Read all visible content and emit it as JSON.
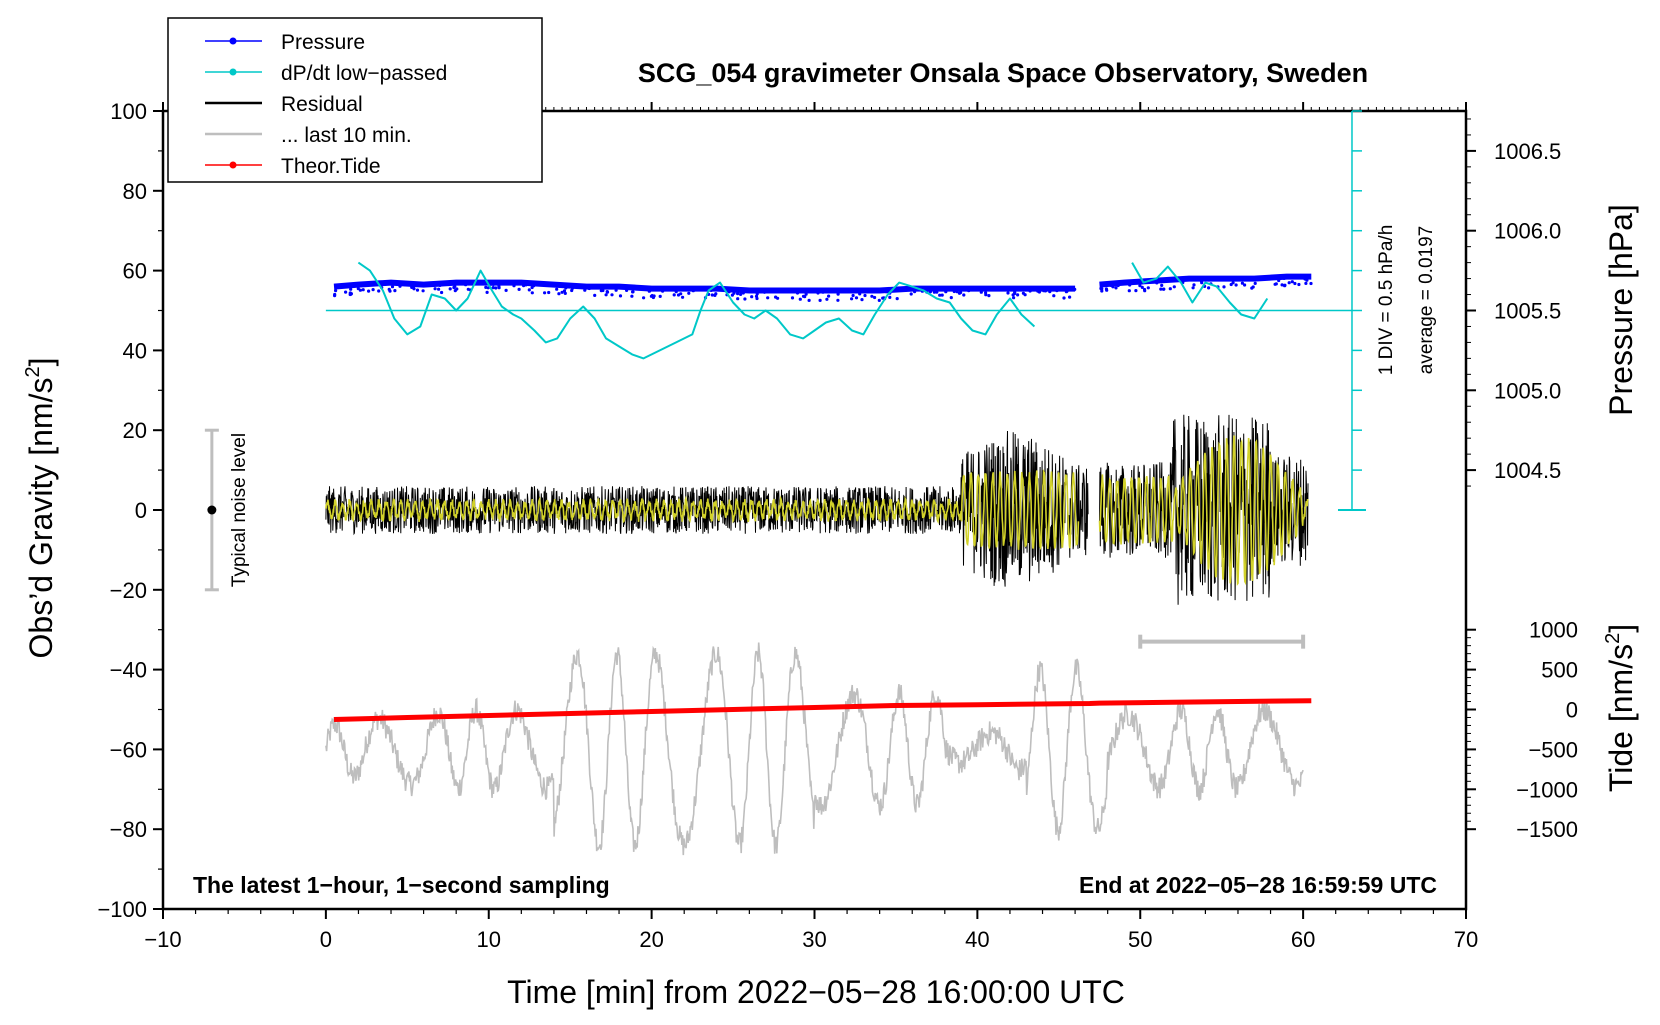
{
  "chart_data": {
    "type": "line",
    "title": "SCG_054 gravimeter Onsala Space Observatory, Sweden",
    "xlabel": "Time [min] from 2022−05−28 16:00:00 UTC",
    "ylabel": "Obs’d Gravity [nm/s",
    "ylabel_sup": "2",
    "ylabel_end": "]",
    "y2label_pressure": "Pressure [hPa]",
    "y2label_tide": "Tide [nm/s",
    "y2label_tide_sup": "2",
    "y2label_tide_end": "]",
    "xlim": [
      -10,
      70
    ],
    "ylim": [
      -100,
      100
    ],
    "x_ticks": [
      "−10",
      "0",
      "10",
      "20",
      "30",
      "40",
      "50",
      "60",
      "70"
    ],
    "x_tick_values": [
      -10,
      0,
      10,
      20,
      30,
      40,
      50,
      60,
      70
    ],
    "y_ticks": [
      "100",
      "80",
      "60",
      "40",
      "20",
      "0",
      "−20",
      "−40",
      "−60",
      "−80",
      "−100"
    ],
    "y_tick_values": [
      100,
      80,
      60,
      40,
      20,
      0,
      -20,
      -40,
      -60,
      -80,
      -100
    ],
    "pressure_axis": {
      "ticks": [
        "1006.5",
        "1006.0",
        "1005.5",
        "1005.0",
        "1004.5"
      ],
      "values": [
        1006.5,
        1006.0,
        1005.5,
        1005.0,
        1004.5
      ],
      "gravity_equiv_per_hpa": 40,
      "ref_hpa": 1005.5,
      "ref_gravity": 50
    },
    "tide_axis": {
      "ticks": [
        "1000",
        "500",
        "0",
        "−500",
        "−1000",
        "−1500"
      ],
      "values": [
        1000,
        500,
        0,
        -500,
        -1000,
        -1500
      ],
      "gravity_per_nms2": 0.02,
      "zero_gravity": -50
    },
    "legend": [
      {
        "label": "Pressure",
        "color": "#0000ff",
        "style": "line-dot"
      },
      {
        "label": "dP/dt low−passed",
        "color": "#00c8c8",
        "style": "line-dot"
      },
      {
        "label": "Residual",
        "color": "#000000",
        "style": "line"
      },
      {
        "label": "... last 10 min.",
        "color": "#bebebe",
        "style": "line"
      },
      {
        "label": "Theor.Tide",
        "color": "#ff0000",
        "style": "line-dot"
      }
    ],
    "annotations": {
      "left_note": "The latest 1−hour, 1−second sampling",
      "right_note": "End at 2022−05−28 16:59:59 UTC",
      "noise_label": "Typical noise level",
      "noise_range": [
        -20,
        20
      ],
      "noise_x": -7,
      "div_label": "1 DIV = 0.5 hPa/h",
      "average_label": "average = 0.0197",
      "dpdt_scale_x": 63,
      "dpdt_scale_range": [
        0,
        100
      ],
      "dpdt_baseline": 50,
      "ten_min_bar": [
        50,
        60
      ],
      "ten_min_bar_y": -33
    },
    "series": [
      {
        "name": "Pressure",
        "color": "#0000ff",
        "x": [
          0.5,
          2,
          4,
          6,
          8,
          10,
          12,
          14,
          16,
          18,
          20,
          22,
          24,
          26,
          28,
          30,
          32,
          34,
          36,
          38,
          40,
          42,
          44,
          46
        ],
        "y": [
          56,
          56.5,
          57,
          56.5,
          57,
          57,
          57,
          56.5,
          56,
          56,
          55.5,
          55.5,
          55.5,
          55,
          55,
          55,
          55,
          55,
          55.5,
          55.5,
          55.5,
          55.5,
          55.5,
          55.5
        ]
      },
      {
        "name": "Pressure (after gap)",
        "color": "#0000ff",
        "x": [
          47.5,
          49,
          51,
          53,
          55,
          57,
          59,
          60.5
        ],
        "y": [
          56.5,
          57,
          57.5,
          58,
          58,
          58,
          58.5,
          58.5
        ]
      },
      {
        "name": "dP/dt low-passed",
        "color": "#00c8c8",
        "x": [
          2,
          2.7,
          3.5,
          4.2,
          5,
          5.8,
          6.5,
          7.3,
          8,
          8.7,
          9.5,
          10.2,
          10.8,
          11.5,
          12,
          12.8,
          13.5,
          14.2,
          15,
          15.8,
          16.5,
          17.2,
          18,
          18.8,
          19.5,
          20.5,
          21.5,
          22.5,
          23,
          23.5,
          24.2,
          25,
          25.7,
          26.3,
          27,
          27.7,
          28.5,
          29.3,
          30,
          30.7,
          31.5,
          32.3,
          33,
          33.7,
          34.5,
          35.2,
          36,
          36.7,
          37.5,
          38.3,
          39,
          39.7,
          40.5,
          41.2,
          42,
          42.7,
          43.5
        ],
        "y": [
          62,
          60,
          55,
          48,
          44,
          46,
          54,
          53,
          50,
          53,
          60,
          55,
          51,
          49,
          48,
          45,
          42,
          43,
          48,
          51,
          48,
          43,
          41,
          39,
          38,
          40,
          42,
          44,
          50,
          55,
          57,
          52,
          49,
          48,
          50,
          48,
          44,
          43,
          45,
          47,
          48,
          45,
          44,
          49,
          54,
          57,
          56,
          55,
          53,
          52,
          48,
          45,
          44,
          49,
          53,
          49,
          46
        ]
      },
      {
        "name": "dP/dt low-passed (after gap)",
        "color": "#00c8c8",
        "x": [
          49.5,
          50.2,
          51,
          51.7,
          52.5,
          53.2,
          54,
          54.7,
          55.5,
          56.2,
          57,
          57.8
        ],
        "y": [
          62,
          57,
          58,
          61,
          57,
          52,
          57,
          56,
          52,
          49,
          48,
          53
        ]
      },
      {
        "name": "Theor.Tide",
        "color": "#ff0000",
        "x": [
          0.5,
          5,
          10,
          15,
          20,
          25,
          30,
          35,
          40,
          46.9,
          47.5,
          52,
          56,
          60.5
        ],
        "y": [
          -52.5,
          -52,
          -51.5,
          -51,
          -50.5,
          -50,
          -49.5,
          -49,
          -48.8,
          -48.5,
          -48.4,
          -48.2,
          -48,
          -47.8
        ]
      }
    ]
  }
}
